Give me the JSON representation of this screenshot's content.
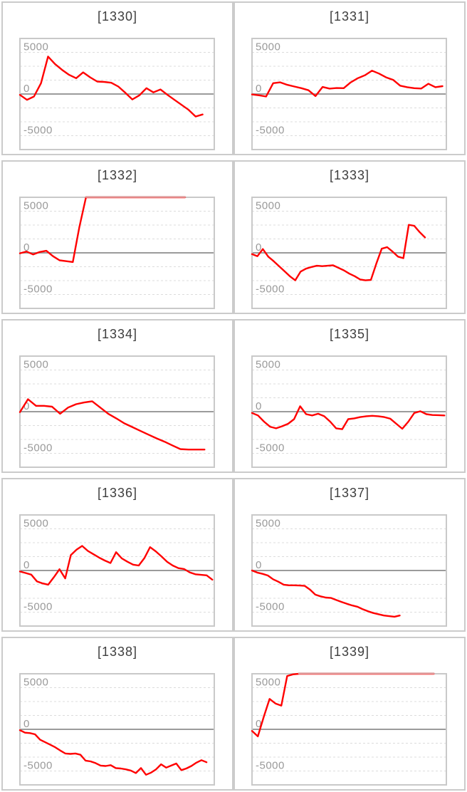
{
  "page": {
    "background": "#ffffff",
    "description": "Grid of 10 machine slump graphs, 2 columns x 5 rows"
  },
  "style": {
    "panel_border": "#cbcbcb",
    "plot_border": "#c9c9c9",
    "grid_dotted": "#dcdcdc",
    "zero_line": "#9b9b9b",
    "series_red": "#ff0000",
    "clipped_red": "#dfa0a0",
    "label_color": "#999999",
    "title_color": "#3d3d3d"
  },
  "axis": {
    "ymax": 6667,
    "ymin": -6667,
    "tick_values": [
      5000,
      0,
      -5000
    ],
    "tick_labels": [
      "5000",
      "0",
      "-5000"
    ],
    "minor_grid_step": 1667,
    "grid_style": "dotted horizontal minor gridlines, solid gray line at 0",
    "x_axis": "no labels (game count), lines clipped at ymax"
  },
  "chart_data": [
    {
      "type": "line",
      "title": "[1330]",
      "x_end": 0.94,
      "values": [
        -100,
        -700,
        -300,
        1300,
        4500,
        3600,
        2900,
        2300,
        1900,
        2600,
        2000,
        1500,
        1450,
        1350,
        900,
        150,
        -650,
        -150,
        700,
        200,
        550,
        -100,
        -700,
        -1300,
        -1900,
        -2700,
        -2450
      ]
    },
    {
      "type": "line",
      "title": "[1331]",
      "x_end": 0.98,
      "values": [
        -50,
        -150,
        -300,
        1300,
        1400,
        1100,
        900,
        700,
        450,
        -250,
        850,
        650,
        720,
        700,
        1400,
        1900,
        2250,
        2800,
        2450,
        2000,
        1700,
        1000,
        820,
        700,
        660,
        1230,
        820,
        940
      ]
    },
    {
      "type": "line",
      "title": "[1332]",
      "x_end": 0.85,
      "values": [
        -50,
        150,
        -200,
        100,
        250,
        -400,
        -900,
        -1000,
        -1100,
        3100,
        7200,
        7200,
        7200,
        7200,
        7200,
        7200,
        7200,
        7200,
        7200,
        7200,
        7200,
        7200,
        7200,
        7200,
        7200,
        7200
      ]
    },
    {
      "type": "line",
      "title": "[1333]",
      "x_end": 0.89,
      "values": [
        -150,
        -400,
        450,
        -450,
        -1000,
        -1600,
        -2200,
        -2800,
        -3300,
        -2250,
        -1900,
        -1700,
        -1550,
        -1600,
        -1550,
        -1500,
        -1800,
        -2100,
        -2500,
        -2800,
        -3200,
        -3300,
        -3250,
        -1300,
        500,
        680,
        150,
        -450,
        -640,
        3360,
        3250,
        2500,
        1850
      ]
    },
    {
      "type": "line",
      "title": "[1334]",
      "x_end": 0.95,
      "values": [
        -50,
        1500,
        700,
        700,
        600,
        -250,
        500,
        900,
        1100,
        1250,
        500,
        -250,
        -800,
        -1400,
        -1850,
        -2300,
        -2750,
        -3200,
        -3600,
        -4050,
        -4500,
        -4550,
        -4550,
        -4550
      ]
    },
    {
      "type": "line",
      "title": "[1335]",
      "x_end": 0.99,
      "values": [
        -150,
        -450,
        -1200,
        -1800,
        -2000,
        -1750,
        -1450,
        -900,
        650,
        -300,
        -450,
        -250,
        -550,
        -1200,
        -2000,
        -2100,
        -900,
        -800,
        -650,
        -550,
        -500,
        -550,
        -650,
        -850,
        -1450,
        -2050,
        -1200,
        -150,
        50,
        -300,
        -400,
        -420,
        -450
      ]
    },
    {
      "type": "line",
      "title": "[1336]",
      "x_end": 0.99,
      "values": [
        -120,
        -300,
        -500,
        -1300,
        -1550,
        -1700,
        -800,
        150,
        -950,
        1850,
        2500,
        2950,
        2350,
        1950,
        1550,
        1200,
        900,
        2200,
        1450,
        1050,
        700,
        600,
        1500,
        2800,
        2300,
        1700,
        1050,
        600,
        280,
        180,
        -220,
        -450,
        -520,
        -580,
        -1100
      ]
    },
    {
      "type": "line",
      "title": "[1337]",
      "x_end": 0.76,
      "values": [
        0,
        -250,
        -400,
        -600,
        -1050,
        -1350,
        -1700,
        -1780,
        -1780,
        -1800,
        -1850,
        -2300,
        -2900,
        -3100,
        -3250,
        -3300,
        -3550,
        -3780,
        -4000,
        -4200,
        -4350,
        -4650,
        -4900,
        -5100,
        -5250,
        -5400,
        -5480,
        -5550,
        -5400
      ]
    },
    {
      "type": "line",
      "title": "[1338]",
      "x_end": 0.96,
      "values": [
        -100,
        -400,
        -450,
        -600,
        -1250,
        -1550,
        -1850,
        -2150,
        -2550,
        -2900,
        -2950,
        -2900,
        -3050,
        -3750,
        -3850,
        -4050,
        -4350,
        -4400,
        -4300,
        -4650,
        -4700,
        -4800,
        -4950,
        -5250,
        -4650,
        -5450,
        -5200,
        -4800,
        -4200,
        -4600,
        -4350,
        -4100,
        -4900,
        -4700,
        -4400,
        -4000,
        -3700,
        -3950
      ]
    },
    {
      "type": "line",
      "title": "[1339]",
      "x_end": 0.935,
      "values": [
        -200,
        -850,
        1500,
        3650,
        3100,
        2850,
        6400,
        6600,
        7200,
        7200,
        7200,
        7200,
        7200,
        7200,
        7200,
        7200,
        7200,
        7200,
        7200,
        7200,
        7200,
        7200,
        7200,
        7200,
        7200,
        7200,
        7200,
        7200,
        7200,
        7200,
        7200,
        7200
      ]
    }
  ]
}
